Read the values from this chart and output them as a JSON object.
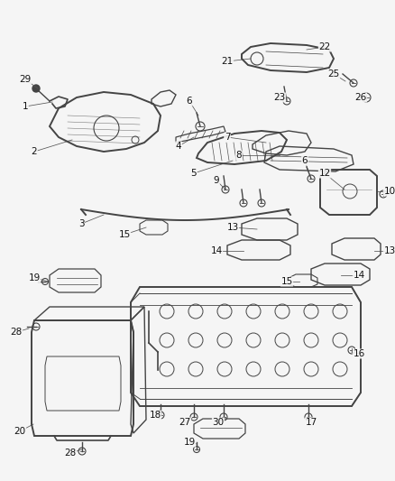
{
  "background_color": "#f5f5f5",
  "line_color": "#444444",
  "label_color": "#111111",
  "fig_width": 4.38,
  "fig_height": 5.33,
  "dpi": 100
}
